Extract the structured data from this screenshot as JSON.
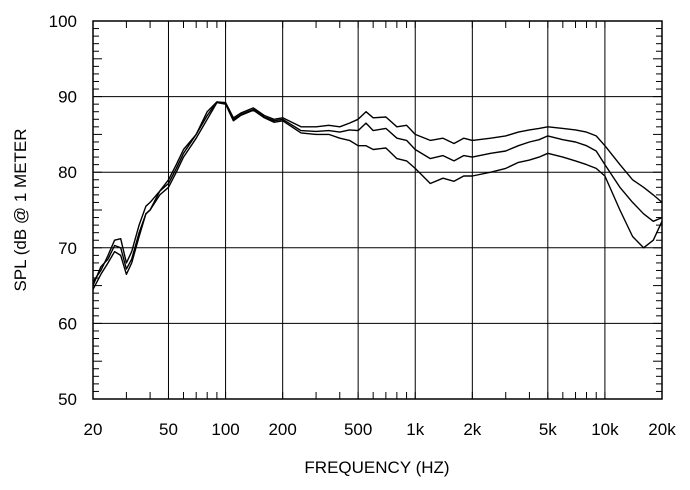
{
  "chart_data": {
    "type": "line",
    "xscale": "log",
    "xlabel": "FREQUENCY  (HZ)",
    "ylabel": "SPL (dB @ 1 METER",
    "xlim": [
      20,
      20000
    ],
    "ylim": [
      50,
      100
    ],
    "grid": true,
    "x_ticks": [
      {
        "value": 20,
        "label": "20"
      },
      {
        "value": 50,
        "label": "50"
      },
      {
        "value": 100,
        "label": "100"
      },
      {
        "value": 200,
        "label": "200"
      },
      {
        "value": 500,
        "label": "500"
      },
      {
        "value": 1000,
        "label": "1k"
      },
      {
        "value": 2000,
        "label": "2k"
      },
      {
        "value": 5000,
        "label": "5k"
      },
      {
        "value": 10000,
        "label": "10k"
      },
      {
        "value": 20000,
        "label": "20k"
      }
    ],
    "y_ticks": [
      {
        "value": 50,
        "label": "50"
      },
      {
        "value": 60,
        "label": "60"
      },
      {
        "value": 70,
        "label": "70"
      },
      {
        "value": 80,
        "label": "80"
      },
      {
        "value": 90,
        "label": "90"
      },
      {
        "value": 100,
        "label": "100"
      }
    ],
    "series": [
      {
        "points": [
          [
            20,
            65.5
          ],
          [
            22,
            67
          ],
          [
            24,
            69
          ],
          [
            26,
            71
          ],
          [
            28,
            71.2
          ],
          [
            30,
            68
          ],
          [
            32,
            69.5
          ],
          [
            35,
            73
          ],
          [
            38,
            75.5
          ],
          [
            40,
            76
          ],
          [
            45,
            77.5
          ],
          [
            50,
            79
          ],
          [
            55,
            81
          ],
          [
            60,
            83
          ],
          [
            70,
            85
          ],
          [
            80,
            88
          ],
          [
            90,
            89.3
          ],
          [
            100,
            89.2
          ],
          [
            110,
            87.2
          ],
          [
            120,
            87.8
          ],
          [
            140,
            88.5
          ],
          [
            160,
            87.5
          ],
          [
            180,
            87
          ],
          [
            200,
            87.2
          ],
          [
            250,
            86
          ],
          [
            300,
            86
          ],
          [
            350,
            86.2
          ],
          [
            400,
            86
          ],
          [
            450,
            86.5
          ],
          [
            500,
            87
          ],
          [
            550,
            88
          ],
          [
            600,
            87.2
          ],
          [
            700,
            87.3
          ],
          [
            800,
            86
          ],
          [
            900,
            86.2
          ],
          [
            1000,
            85
          ],
          [
            1200,
            84.2
          ],
          [
            1400,
            84.5
          ],
          [
            1600,
            83.8
          ],
          [
            1800,
            84.5
          ],
          [
            2000,
            84.2
          ],
          [
            2500,
            84.5
          ],
          [
            3000,
            84.8
          ],
          [
            3500,
            85.3
          ],
          [
            4000,
            85.6
          ],
          [
            4500,
            85.8
          ],
          [
            5000,
            86
          ],
          [
            6000,
            85.8
          ],
          [
            7000,
            85.6
          ],
          [
            8000,
            85.3
          ],
          [
            9000,
            84.8
          ],
          [
            10000,
            83.5
          ],
          [
            12000,
            81
          ],
          [
            14000,
            79
          ],
          [
            16000,
            78
          ],
          [
            18000,
            77
          ],
          [
            20000,
            76
          ]
        ]
      },
      {
        "points": [
          [
            20,
            65
          ],
          [
            22,
            67.5
          ],
          [
            24,
            68.5
          ],
          [
            26,
            70.3
          ],
          [
            28,
            70
          ],
          [
            30,
            67.2
          ],
          [
            32,
            68.5
          ],
          [
            35,
            72
          ],
          [
            38,
            74.5
          ],
          [
            40,
            75
          ],
          [
            45,
            77.5
          ],
          [
            50,
            78.5
          ],
          [
            55,
            80.5
          ],
          [
            60,
            82.5
          ],
          [
            70,
            85
          ],
          [
            80,
            87.5
          ],
          [
            90,
            89.3
          ],
          [
            100,
            89.1
          ],
          [
            110,
            87
          ],
          [
            120,
            87.6
          ],
          [
            140,
            88.3
          ],
          [
            160,
            87.3
          ],
          [
            180,
            86.8
          ],
          [
            200,
            87
          ],
          [
            250,
            85.5
          ],
          [
            300,
            85.4
          ],
          [
            350,
            85.5
          ],
          [
            400,
            85.3
          ],
          [
            450,
            85.6
          ],
          [
            500,
            85.5
          ],
          [
            550,
            86.5
          ],
          [
            600,
            85.5
          ],
          [
            700,
            85.8
          ],
          [
            800,
            84.5
          ],
          [
            900,
            84.2
          ],
          [
            1000,
            83
          ],
          [
            1200,
            81.8
          ],
          [
            1400,
            82.2
          ],
          [
            1600,
            81.5
          ],
          [
            1800,
            82.2
          ],
          [
            2000,
            82
          ],
          [
            2500,
            82.5
          ],
          [
            3000,
            82.8
          ],
          [
            3500,
            83.5
          ],
          [
            4000,
            84
          ],
          [
            4500,
            84.3
          ],
          [
            5000,
            84.8
          ],
          [
            6000,
            84.3
          ],
          [
            7000,
            84
          ],
          [
            8000,
            83.5
          ],
          [
            9000,
            82.8
          ],
          [
            10000,
            81
          ],
          [
            12000,
            78
          ],
          [
            14000,
            76
          ],
          [
            16000,
            74.5
          ],
          [
            18000,
            73.5
          ],
          [
            20000,
            74
          ]
        ]
      },
      {
        "points": [
          [
            20,
            64.5
          ],
          [
            22,
            66.5
          ],
          [
            24,
            68
          ],
          [
            26,
            69.5
          ],
          [
            28,
            69
          ],
          [
            30,
            66.5
          ],
          [
            32,
            68
          ],
          [
            35,
            71.5
          ],
          [
            38,
            74.5
          ],
          [
            40,
            75
          ],
          [
            45,
            77
          ],
          [
            50,
            78
          ],
          [
            55,
            80
          ],
          [
            60,
            82
          ],
          [
            70,
            84.5
          ],
          [
            80,
            87
          ],
          [
            90,
            89.2
          ],
          [
            100,
            89
          ],
          [
            110,
            86.8
          ],
          [
            120,
            87.5
          ],
          [
            140,
            88.2
          ],
          [
            160,
            87.2
          ],
          [
            180,
            86.6
          ],
          [
            200,
            86.8
          ],
          [
            250,
            85.2
          ],
          [
            300,
            85
          ],
          [
            350,
            85
          ],
          [
            400,
            84.5
          ],
          [
            450,
            84.2
          ],
          [
            500,
            83.5
          ],
          [
            550,
            83.5
          ],
          [
            600,
            83
          ],
          [
            700,
            83.2
          ],
          [
            800,
            81.8
          ],
          [
            900,
            81.5
          ],
          [
            1000,
            80.5
          ],
          [
            1200,
            78.5
          ],
          [
            1400,
            79.2
          ],
          [
            1600,
            78.8
          ],
          [
            1800,
            79.5
          ],
          [
            2000,
            79.5
          ],
          [
            2500,
            80
          ],
          [
            3000,
            80.5
          ],
          [
            3500,
            81.3
          ],
          [
            4000,
            81.6
          ],
          [
            4500,
            82
          ],
          [
            5000,
            82.5
          ],
          [
            6000,
            82
          ],
          [
            7000,
            81.5
          ],
          [
            8000,
            81
          ],
          [
            9000,
            80.5
          ],
          [
            10000,
            79.5
          ],
          [
            12000,
            75
          ],
          [
            14000,
            71.5
          ],
          [
            16000,
            70
          ],
          [
            18000,
            71
          ],
          [
            20000,
            73.5
          ]
        ]
      }
    ]
  }
}
